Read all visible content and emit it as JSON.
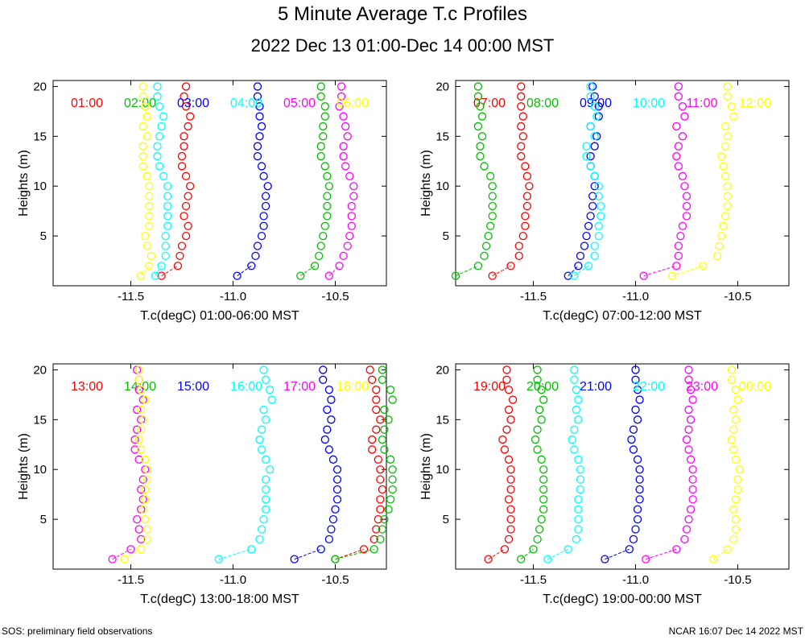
{
  "chart_data": {
    "type": "scatter",
    "title": "5 Minute Average T.c Profiles",
    "subtitle": "2022 Dec 13 01:00-Dec 14 00:00 MST",
    "ylabel": "Heights (m)",
    "ylim": [
      0,
      20.6
    ],
    "yticks": [
      5,
      10,
      15,
      20
    ],
    "xlim": [
      -11.88,
      -10.25
    ],
    "xticks": [
      -11.5,
      -11.0,
      -10.5
    ],
    "xtick_labels": [
      "-11.5",
      "-11.0",
      "-10.5"
    ],
    "heights": [
      1,
      2,
      3,
      4,
      5,
      6,
      7,
      8,
      9,
      10,
      11,
      12,
      13,
      14,
      15,
      16,
      17,
      18,
      19,
      20
    ],
    "colors": [
      "#ff0000",
      "#00c000",
      "#0000ff",
      "#00ffff",
      "#ff00ff",
      "#ffff00"
    ],
    "panels": [
      {
        "xlabel": "T.c(degC) 01:00-06:00 MST",
        "series": [
          {
            "name": "01:00",
            "x": [
              -11.35,
              -11.27,
              -11.26,
              -11.25,
              -11.23,
              -11.22,
              -11.24,
              -11.23,
              -11.22,
              -11.21,
              -11.23,
              -11.25,
              -11.25,
              -11.24,
              -11.24,
              -11.22,
              -11.21,
              -11.23,
              -11.24,
              -11.23
            ]
          },
          {
            "name": "02:00",
            "x": [
              -10.67,
              -10.6,
              -10.58,
              -10.57,
              -10.56,
              -10.55,
              -10.54,
              -10.54,
              -10.54,
              -10.53,
              -10.54,
              -10.55,
              -10.57,
              -10.57,
              -10.56,
              -10.56,
              -10.55,
              -10.55,
              -10.57,
              -10.57
            ]
          },
          {
            "name": "03:00",
            "x": [
              -10.98,
              -10.91,
              -10.89,
              -10.88,
              -10.86,
              -10.85,
              -10.85,
              -10.84,
              -10.84,
              -10.83,
              -10.85,
              -10.86,
              -10.88,
              -10.88,
              -10.87,
              -10.86,
              -10.87,
              -10.87,
              -10.88,
              -10.88
            ]
          },
          {
            "name": "04:00",
            "x": [
              -11.38,
              -11.35,
              -11.33,
              -11.33,
              -11.33,
              -11.32,
              -11.32,
              -11.32,
              -11.32,
              -11.32,
              -11.34,
              -11.36,
              -11.37,
              -11.37,
              -11.36,
              -11.35,
              -11.34,
              -11.36,
              -11.37,
              -11.37
            ]
          },
          {
            "name": "05:00",
            "x": [
              -10.53,
              -10.48,
              -10.46,
              -10.44,
              -10.43,
              -10.42,
              -10.42,
              -10.42,
              -10.41,
              -10.41,
              -10.43,
              -10.45,
              -10.46,
              -10.46,
              -10.44,
              -10.45,
              -10.46,
              -10.48,
              -10.47,
              -10.47
            ]
          },
          {
            "name": "06:00",
            "x": [
              -11.45,
              -11.41,
              -11.4,
              -11.42,
              -11.43,
              -11.41,
              -11.41,
              -11.41,
              -11.41,
              -11.41,
              -11.42,
              -11.44,
              -11.44,
              -11.44,
              -11.42,
              -11.44,
              -11.42,
              -11.43,
              -11.44,
              -11.44
            ]
          }
        ]
      },
      {
        "xlabel": "T.c(degC) 07:00-12:00 MST",
        "series": [
          {
            "name": "07:00",
            "x": [
              -11.7,
              -11.61,
              -11.57,
              -11.57,
              -11.55,
              -11.54,
              -11.54,
              -11.53,
              -11.53,
              -11.52,
              -11.53,
              -11.54,
              -11.56,
              -11.56,
              -11.55,
              -11.56,
              -11.55,
              -11.56,
              -11.56,
              -11.56
            ]
          },
          {
            "name": "08:00",
            "x": [
              -11.88,
              -11.77,
              -11.74,
              -11.73,
              -11.72,
              -11.71,
              -11.7,
              -11.7,
              -11.7,
              -11.7,
              -11.71,
              -11.74,
              -11.76,
              -11.76,
              -11.75,
              -11.77,
              -11.75,
              -11.76,
              -11.77,
              -11.77
            ]
          },
          {
            "name": "09:00",
            "x": [
              -11.33,
              -11.28,
              -11.27,
              -11.25,
              -11.24,
              -11.23,
              -11.22,
              -11.21,
              -11.21,
              -11.2,
              -11.2,
              -11.22,
              -11.22,
              -11.2,
              -11.19,
              -11.22,
              -11.18,
              -11.18,
              -11.2,
              -11.21
            ]
          },
          {
            "name": "10:00",
            "x": [
              -11.3,
              -11.23,
              -11.2,
              -11.2,
              -11.18,
              -11.18,
              -11.17,
              -11.17,
              -11.18,
              -11.18,
              -11.2,
              -11.22,
              -11.24,
              -11.24,
              -11.2,
              -11.22,
              -11.19,
              -11.2,
              -11.22,
              -11.22
            ]
          },
          {
            "name": "11:00",
            "x": [
              -10.96,
              -10.8,
              -10.79,
              -10.79,
              -10.78,
              -10.77,
              -10.75,
              -10.75,
              -10.75,
              -10.76,
              -10.77,
              -10.79,
              -10.8,
              -10.79,
              -10.77,
              -10.8,
              -10.76,
              -10.77,
              -10.79,
              -10.79
            ]
          },
          {
            "name": "12:00",
            "x": [
              -10.82,
              -10.67,
              -10.6,
              -10.59,
              -10.58,
              -10.57,
              -10.56,
              -10.55,
              -10.55,
              -10.55,
              -10.56,
              -10.57,
              -10.58,
              -10.56,
              -10.55,
              -10.56,
              -10.52,
              -10.53,
              -10.55,
              -10.55
            ]
          }
        ]
      },
      {
        "xlabel": "T.c(degC) 13:00-18:00 MST",
        "series": [
          {
            "name": "13:00",
            "x": [
              -10.5,
              -10.36,
              -10.31,
              -10.3,
              -10.29,
              -10.28,
              -10.28,
              -10.27,
              -10.28,
              -10.28,
              -10.29,
              -10.32,
              -10.32,
              -10.3,
              -10.28,
              -10.3,
              -10.3,
              -10.3,
              -10.32,
              -10.33
            ]
          },
          {
            "name": "14:00",
            "x": [
              -10.5,
              -10.31,
              -10.28,
              -10.27,
              -10.26,
              -10.24,
              -10.23,
              -10.22,
              -10.22,
              -10.22,
              -10.23,
              -10.26,
              -10.27,
              -10.26,
              -10.24,
              -10.26,
              -10.22,
              -10.23,
              -10.27,
              -10.27
            ]
          },
          {
            "name": "15:00",
            "x": [
              -10.7,
              -10.57,
              -10.53,
              -10.52,
              -10.51,
              -10.5,
              -10.49,
              -10.49,
              -10.49,
              -10.49,
              -10.51,
              -10.53,
              -10.55,
              -10.54,
              -10.52,
              -10.54,
              -10.52,
              -10.53,
              -10.56,
              -10.56
            ]
          },
          {
            "name": "16:00",
            "x": [
              -11.07,
              -10.91,
              -10.87,
              -10.86,
              -10.85,
              -10.84,
              -10.84,
              -10.84,
              -10.84,
              -10.82,
              -10.84,
              -10.86,
              -10.87,
              -10.86,
              -10.84,
              -10.85,
              -10.81,
              -10.82,
              -10.84,
              -10.85
            ]
          },
          {
            "name": "17:00",
            "x": [
              -11.59,
              -11.5,
              -11.45,
              -11.46,
              -11.47,
              -11.45,
              -11.44,
              -11.45,
              -11.44,
              -11.43,
              -11.46,
              -11.48,
              -11.48,
              -11.47,
              -11.45,
              -11.47,
              -11.44,
              -11.46,
              -11.46,
              -11.47
            ]
          },
          {
            "name": "18:00",
            "x": [
              -11.53,
              -11.45,
              -11.42,
              -11.42,
              -11.43,
              -11.44,
              -11.43,
              -11.43,
              -11.42,
              -11.42,
              -11.43,
              -11.45,
              -11.46,
              -11.45,
              -11.44,
              -11.45,
              -11.43,
              -11.45,
              -11.46,
              -11.46
            ]
          }
        ]
      },
      {
        "xlabel": "T.c(degC) 19:00-00:00 MST",
        "series": [
          {
            "name": "19:00",
            "x": [
              -11.72,
              -11.64,
              -11.62,
              -11.61,
              -11.61,
              -11.61,
              -11.62,
              -11.61,
              -11.61,
              -11.61,
              -11.62,
              -11.64,
              -11.65,
              -11.63,
              -11.61,
              -11.62,
              -11.6,
              -11.62,
              -11.63,
              -11.63
            ]
          },
          {
            "name": "20:00",
            "x": [
              -11.56,
              -11.5,
              -11.48,
              -11.47,
              -11.46,
              -11.45,
              -11.45,
              -11.45,
              -11.45,
              -11.45,
              -11.46,
              -11.48,
              -11.49,
              -11.48,
              -11.46,
              -11.47,
              -11.45,
              -11.46,
              -11.48,
              -11.48
            ]
          },
          {
            "name": "21:00",
            "x": [
              -11.15,
              -11.03,
              -11.01,
              -11.0,
              -10.99,
              -10.99,
              -10.98,
              -10.98,
              -10.98,
              -10.98,
              -10.99,
              -11.01,
              -11.02,
              -11.01,
              -10.99,
              -11.0,
              -10.98,
              -10.99,
              -11.0,
              -11.0
            ]
          },
          {
            "name": "22:00",
            "x": [
              -11.43,
              -11.33,
              -11.29,
              -11.28,
              -11.28,
              -11.28,
              -11.28,
              -11.27,
              -11.27,
              -11.27,
              -11.28,
              -11.3,
              -11.31,
              -11.3,
              -11.28,
              -11.29,
              -11.28,
              -11.29,
              -11.3,
              -11.3
            ]
          },
          {
            "name": "23:00",
            "x": [
              -10.95,
              -10.8,
              -10.76,
              -10.75,
              -10.74,
              -10.73,
              -10.72,
              -10.72,
              -10.72,
              -10.72,
              -10.73,
              -10.74,
              -10.75,
              -10.74,
              -10.73,
              -10.74,
              -10.72,
              -10.73,
              -10.74,
              -10.74
            ]
          },
          {
            "name": "00:00",
            "x": [
              -10.62,
              -10.55,
              -10.52,
              -10.51,
              -10.51,
              -10.52,
              -10.51,
              -10.5,
              -10.5,
              -10.49,
              -10.51,
              -10.52,
              -10.53,
              -10.52,
              -10.51,
              -10.52,
              -10.5,
              -10.51,
              -10.53,
              -10.53
            ]
          }
        ]
      }
    ]
  },
  "footer": {
    "left": "SOS: preliminary field observations",
    "right": "NCAR 16:07 Dec 14 2022 MST"
  }
}
